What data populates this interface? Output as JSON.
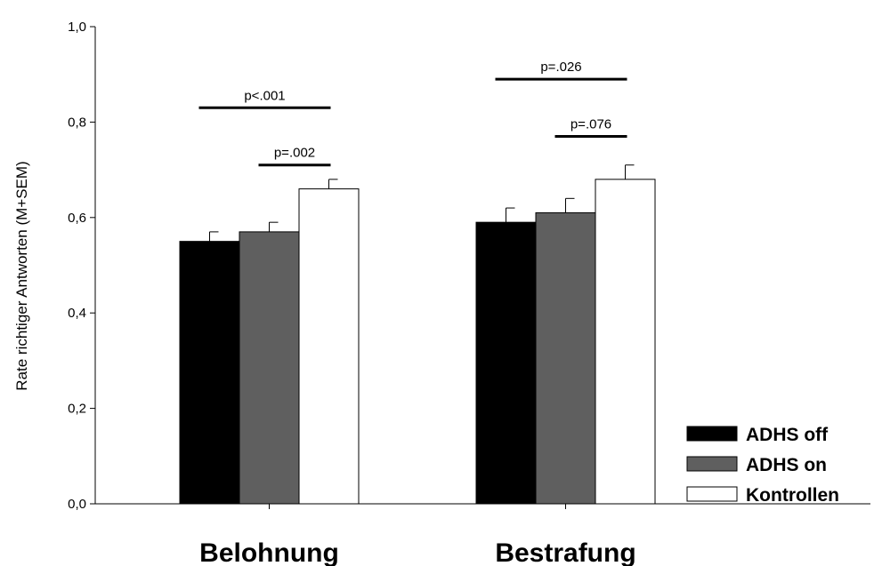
{
  "chart_data": {
    "type": "bar",
    "title": "",
    "xlabel": "",
    "ylabel": "Rate richtiger Antworten (M+SEM)",
    "ylim": [
      0,
      1.0
    ],
    "yticks": [
      "0,0",
      "0,2",
      "0,4",
      "0,6",
      "0,8",
      "1,0"
    ],
    "categories": [
      "Belohnung",
      "Bestrafung"
    ],
    "series": [
      {
        "name": "ADHS off",
        "values": [
          0.55,
          0.59
        ],
        "errors": [
          0.02,
          0.03
        ],
        "color": "#000000"
      },
      {
        "name": "ADHS on",
        "values": [
          0.57,
          0.61
        ],
        "errors": [
          0.02,
          0.03
        ],
        "color": "#5f5f5f"
      },
      {
        "name": "Kontrollen",
        "values": [
          0.66,
          0.68
        ],
        "errors": [
          0.02,
          0.03
        ],
        "color": "#ffffff"
      }
    ],
    "annotations": [
      {
        "text": "p<.001",
        "category": "Belohnung",
        "from_series": 0,
        "to_series": 2,
        "y": 0.83
      },
      {
        "text": "p=.002",
        "category": "Belohnung",
        "from_series": 1,
        "to_series": 2,
        "y": 0.71
      },
      {
        "text": "p=.026",
        "category": "Bestrafung",
        "from_series": 0,
        "to_series": 2,
        "y": 0.89
      },
      {
        "text": "p=.076",
        "category": "Bestrafung",
        "from_series": 1,
        "to_series": 2,
        "y": 0.77
      }
    ],
    "legend_position": "bottom-right",
    "grid": false
  }
}
